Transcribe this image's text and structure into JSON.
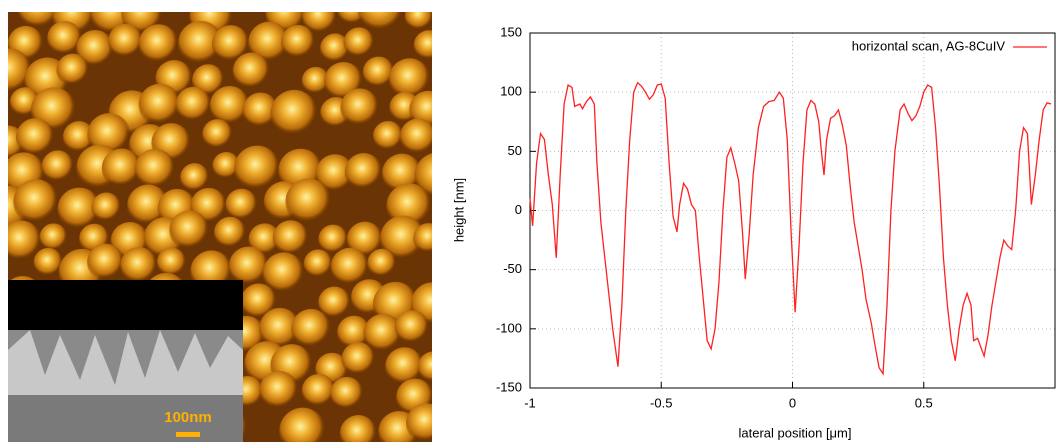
{
  "image": {
    "scale_bar": "100nm"
  },
  "chart_data": {
    "type": "line",
    "xlabel": "lateral position [μm]",
    "ylabel": "height [nm]",
    "xlim": [
      -1,
      1
    ],
    "ylim": [
      -150,
      150
    ],
    "xticks": [
      -1,
      -0.5,
      0,
      0.5
    ],
    "yticks": [
      -150,
      -100,
      -50,
      0,
      50,
      100,
      150
    ],
    "grid": true,
    "legend": "upper right",
    "x": [
      -1,
      -0.99,
      -0.975,
      -0.96,
      -0.945,
      -0.93,
      -0.915,
      -0.9,
      -0.885,
      -0.87,
      -0.855,
      -0.84,
      -0.83,
      -0.81,
      -0.8,
      -0.785,
      -0.77,
      -0.755,
      -0.745,
      -0.73,
      -0.715,
      -0.7,
      -0.685,
      -0.665,
      -0.65,
      -0.635,
      -0.62,
      -0.605,
      -0.59,
      -0.575,
      -0.56,
      -0.545,
      -0.53,
      -0.515,
      -0.5,
      -0.485,
      -0.47,
      -0.455,
      -0.44,
      -0.43,
      -0.415,
      -0.4,
      -0.385,
      -0.37,
      -0.355,
      -0.34,
      -0.325,
      -0.31,
      -0.295,
      -0.28,
      -0.265,
      -0.25,
      -0.235,
      -0.22,
      -0.205,
      -0.19,
      -0.18,
      -0.165,
      -0.15,
      -0.13,
      -0.11,
      -0.09,
      -0.07,
      -0.05,
      -0.035,
      -0.02,
      -0.005,
      0.01,
      0.025,
      0.04,
      0.055,
      0.07,
      0.085,
      0.1,
      0.11,
      0.12,
      0.13,
      0.145,
      0.16,
      0.175,
      0.19,
      0.205,
      0.22,
      0.235,
      0.25,
      0.265,
      0.28,
      0.3,
      0.315,
      0.33,
      0.345,
      0.36,
      0.375,
      0.39,
      0.41,
      0.425,
      0.44,
      0.455,
      0.47,
      0.485,
      0.5,
      0.515,
      0.53,
      0.545,
      0.56,
      0.575,
      0.59,
      0.605,
      0.62,
      0.635,
      0.65,
      0.665,
      0.68,
      0.69,
      0.705,
      0.72,
      0.73,
      0.745,
      0.76,
      0.775,
      0.79,
      0.805,
      0.82,
      0.835,
      0.85,
      0.865,
      0.88,
      0.895,
      0.91,
      0.925,
      0.94,
      0.955,
      0.97,
      0.985
    ],
    "series": [
      {
        "name": "horizontal scan, AG-8CuIV",
        "color": "#ff2020",
        "values": [
          10,
          -13,
          40,
          65,
          60,
          30,
          5,
          -40,
          30,
          90,
          106,
          104,
          88,
          90,
          86,
          92,
          96,
          90,
          40,
          -10,
          -40,
          -70,
          -100,
          -132,
          -80,
          0,
          60,
          100,
          108,
          105,
          100,
          94,
          98,
          106,
          107,
          95,
          40,
          -5,
          -18,
          5,
          23,
          18,
          5,
          0,
          -40,
          -75,
          -110,
          -117,
          -100,
          -60,
          0,
          45,
          53,
          40,
          25,
          -20,
          -58,
          -20,
          30,
          70,
          88,
          92,
          93,
          100,
          95,
          60,
          -20,
          -86,
          -30,
          40,
          85,
          93,
          90,
          75,
          50,
          30,
          60,
          78,
          80,
          85,
          72,
          55,
          20,
          -10,
          -30,
          -50,
          -75,
          -95,
          -115,
          -133,
          -138,
          -80,
          0,
          50,
          85,
          90,
          82,
          76,
          80,
          88,
          100,
          106,
          104,
          70,
          20,
          -40,
          -80,
          -110,
          -127,
          -100,
          -80,
          -70,
          -80,
          -110,
          -108,
          -117,
          -123,
          -105,
          -80,
          -60,
          -40,
          -25,
          -30,
          -33,
          0,
          50,
          70,
          65,
          5,
          30,
          60,
          85,
          91,
          90
        ]
      }
    ]
  }
}
